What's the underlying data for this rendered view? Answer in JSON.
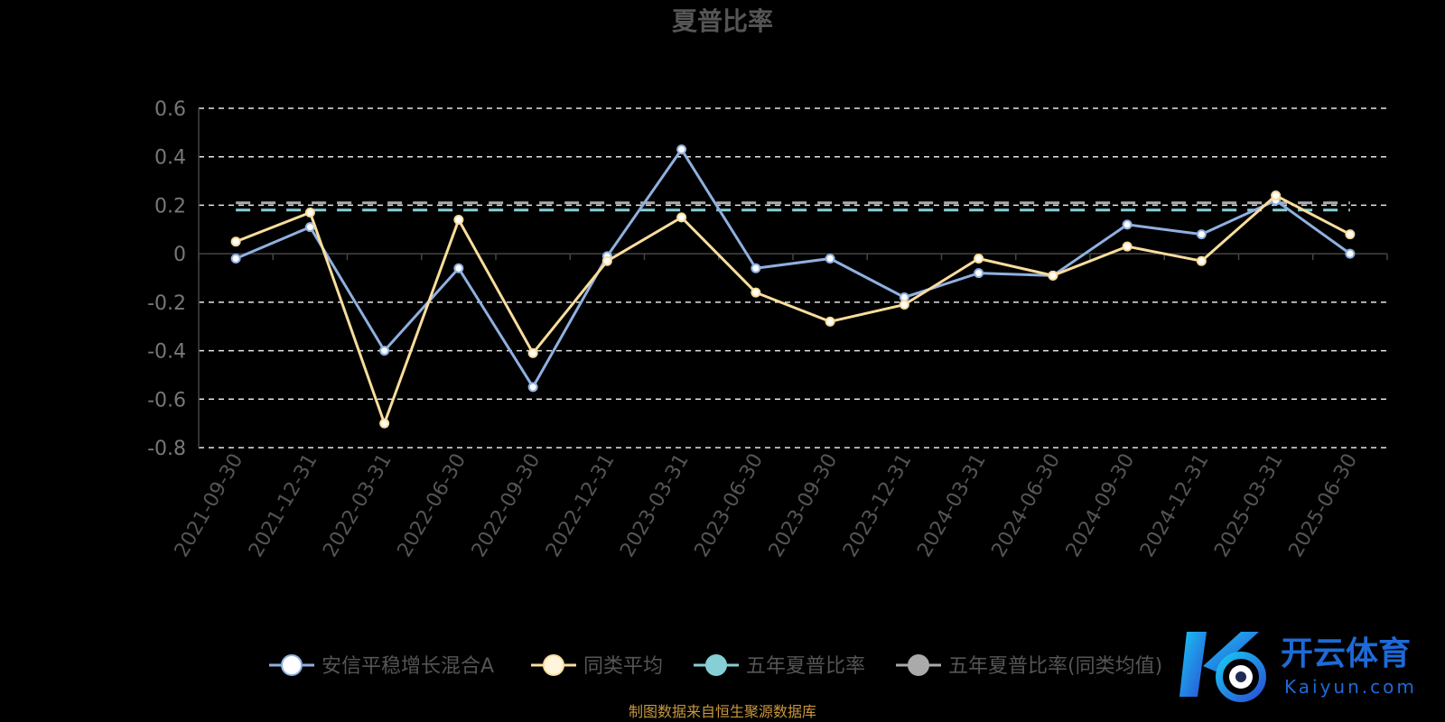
{
  "chart_data": {
    "type": "line",
    "title": "夏普比率",
    "categories": [
      "2021-09-30",
      "2021-12-31",
      "2022-03-31",
      "2022-06-30",
      "2022-09-30",
      "2022-12-31",
      "2023-03-31",
      "2023-06-30",
      "2023-09-30",
      "2023-12-31",
      "2024-03-31",
      "2024-06-30",
      "2024-09-30",
      "2024-12-31",
      "2025-03-31",
      "2025-06-30"
    ],
    "ylim": [
      -0.8,
      0.6
    ],
    "yticks": [
      "0.6",
      "0.4",
      "0.2",
      "0",
      "-0.2",
      "-0.4",
      "-0.6",
      "-0.8"
    ],
    "ytick_values": [
      0.6,
      0.4,
      0.2,
      0,
      -0.2,
      -0.4,
      -0.6,
      -0.8
    ],
    "grid": true,
    "legend_position": "bottom",
    "series": [
      {
        "name": "安信平稳增长混合A",
        "color": "#8fb0e0",
        "values": [
          -0.02,
          0.11,
          -0.4,
          -0.06,
          -0.55,
          -0.01,
          0.43,
          -0.06,
          -0.02,
          -0.18,
          -0.08,
          -0.09,
          0.12,
          0.08,
          0.22,
          0.0
        ]
      },
      {
        "name": "同类平均",
        "color": "#f9dd9c",
        "values": [
          0.05,
          0.17,
          -0.7,
          0.14,
          -0.41,
          -0.03,
          0.15,
          -0.16,
          -0.28,
          -0.21,
          -0.02,
          -0.09,
          0.03,
          -0.03,
          0.24,
          0.08
        ]
      },
      {
        "name": "五年夏普比率",
        "color": "#86cfd6",
        "style": "dashed",
        "values": [
          0.18,
          0.18,
          0.18,
          0.18,
          0.18,
          0.18,
          0.18,
          0.18,
          0.18,
          0.18,
          0.18,
          0.18,
          0.18,
          0.18,
          0.18,
          0.18
        ]
      },
      {
        "name": "五年夏普比率(同类均值)",
        "color": "#aaaaaa",
        "style": "dashed",
        "values": [
          0.21,
          0.21,
          0.21,
          0.21,
          0.21,
          0.21,
          0.21,
          0.21,
          0.21,
          0.21,
          0.21,
          0.21,
          0.21,
          0.21,
          0.21,
          0.21
        ]
      }
    ]
  },
  "source_text": "制图数据来自恒生聚源数据库",
  "watermark": {
    "cn": "开云体育",
    "en": "Kaiyun.com"
  }
}
